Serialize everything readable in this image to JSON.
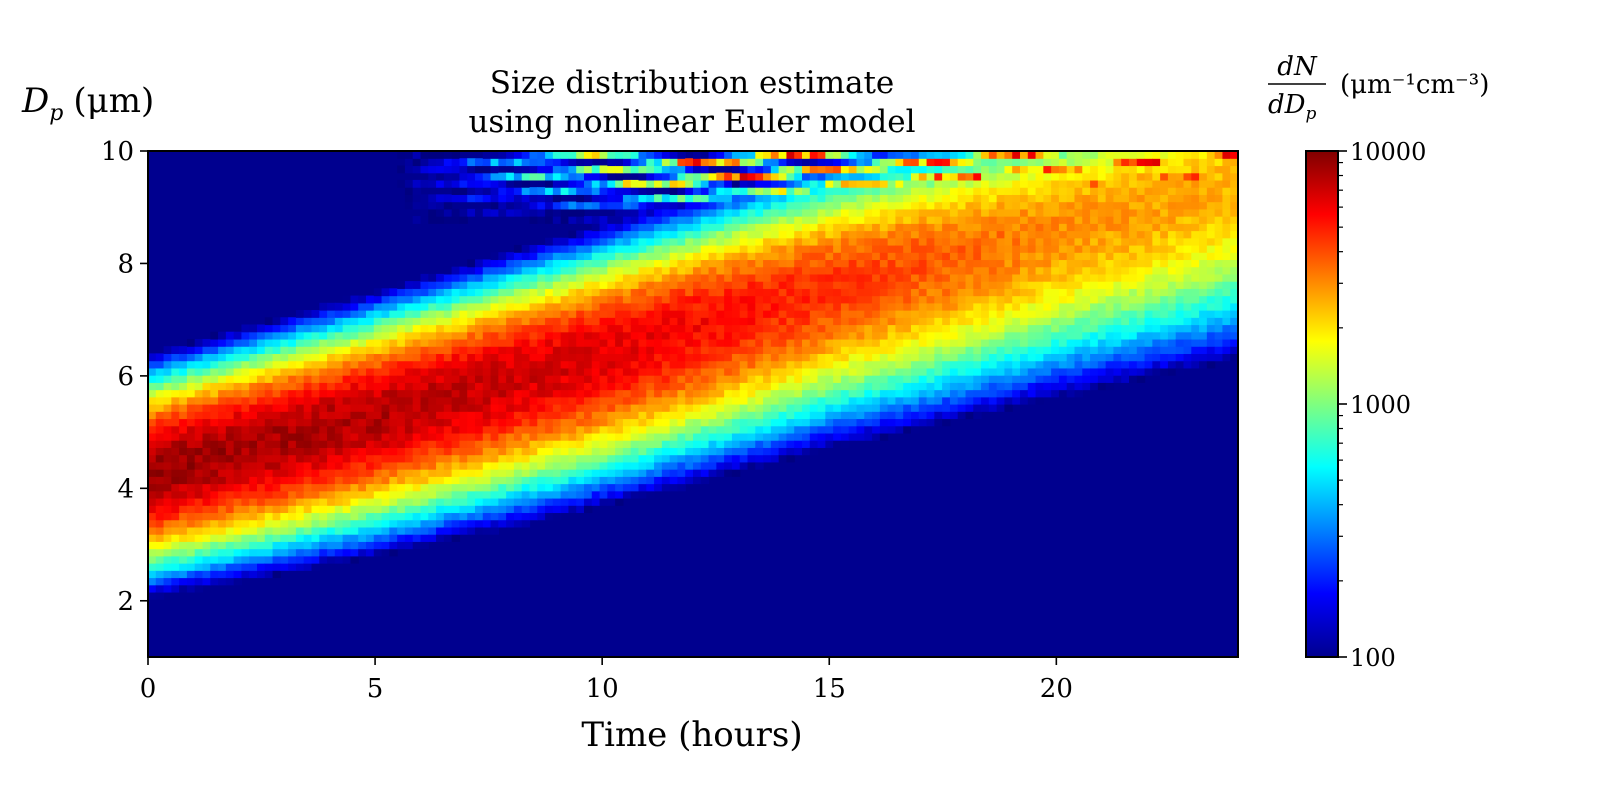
{
  "chart_data": {
    "type": "heatmap",
    "title_lines": [
      "Size distribution estimate",
      "using nonlinear Euler model"
    ],
    "xlabel": "Time (hours)",
    "ylabel": {
      "symbol": "D",
      "sub": "p",
      "unit": "(μm)"
    },
    "xlim": [
      0,
      24
    ],
    "ylim": [
      1,
      10
    ],
    "xticks": [
      0,
      5,
      10,
      15,
      20
    ],
    "yticks": [
      2,
      4,
      6,
      8,
      10
    ],
    "colorbar": {
      "scale": "log",
      "min": 100,
      "max": 10000,
      "ticks": [
        "10000",
        "1000",
        "100"
      ],
      "colormap": "jet",
      "label": {
        "num": "dN",
        "den": "dD",
        "den_sub": "p",
        "unit": "(μm⁻¹cm⁻³)"
      }
    },
    "ridge_center": [
      {
        "t": 0,
        "dp": 4.3
      },
      {
        "t": 5,
        "dp": 5.3
      },
      {
        "t": 10,
        "dp": 6.4
      },
      {
        "t": 15,
        "dp": 7.6
      },
      {
        "t": 20,
        "dp": 8.6
      },
      {
        "t": 24,
        "dp": 9.4
      }
    ],
    "ridge_peak": [
      {
        "t": 0,
        "dndp": 9000
      },
      {
        "t": 5,
        "dndp": 8000
      },
      {
        "t": 10,
        "dndp": 6500
      },
      {
        "t": 15,
        "dndp": 4500
      },
      {
        "t": 20,
        "dndp": 3000
      },
      {
        "t": 24,
        "dndp": 2500
      }
    ],
    "background_value": 100,
    "noise_region": {
      "dp_min": 8.7,
      "t_start": 5.5
    }
  }
}
